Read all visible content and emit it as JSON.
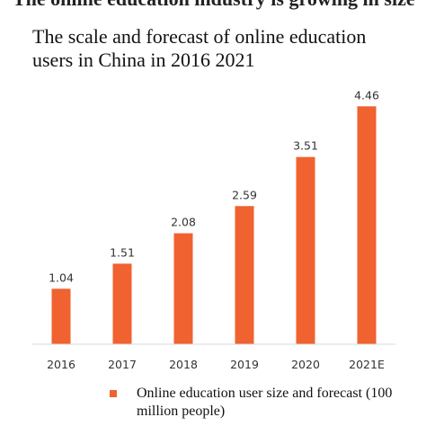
{
  "header": {
    "cut_heading": "The online education industry is growing in size"
  },
  "chart_data": {
    "type": "bar",
    "title": "The scale and forecast of online education users in China in 2016 2021",
    "categories": [
      "2016",
      "2017",
      "2018",
      "2019",
      "2020",
      "2021E"
    ],
    "series": [
      {
        "name": "Online education user size and forecast (100 million people)",
        "values": [
          1.04,
          1.51,
          2.08,
          2.59,
          3.51,
          4.46
        ],
        "color": "#f0622f"
      }
    ],
    "data_labels": [
      "1.04",
      "1.51",
      "2.08",
      "2.59",
      "3.51",
      "4.46"
    ],
    "ylim": [
      0,
      4.6
    ],
    "grid": false,
    "legend": "bottom"
  }
}
